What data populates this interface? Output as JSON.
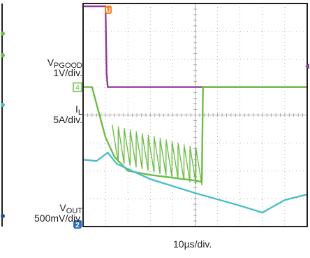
{
  "chart_data": {
    "type": "line",
    "title": "",
    "grid": true,
    "channel_labels": {
      "vpgood": {
        "symbol": "V",
        "subscript": "PGOOD",
        "scale": "1V/div."
      },
      "il": {
        "symbol": "I",
        "subscript": "L",
        "scale": "5A/div."
      },
      "vout": {
        "symbol": "V",
        "subscript": "OUT",
        "scale": "500mV/div."
      }
    },
    "timebase": "10µs/div.",
    "trigger_marker": "U",
    "channel_markers": {
      "il": "4",
      "vout": "2"
    },
    "colors": {
      "vpgood": "#8e3c97",
      "il": "#6cbd45",
      "vout": "#4bbfc9",
      "trigger": "#f58220",
      "grid": "#9a9a9a",
      "frame": "#231f20"
    },
    "x_unit": "div",
    "y_unit": "div",
    "xlim": [
      0,
      10
    ],
    "ylim": [
      0,
      8
    ],
    "series": [
      {
        "channel": "vpgood",
        "points": [
          [
            0,
            7.9
          ],
          [
            1.0,
            7.9
          ],
          [
            1.05,
            5.5
          ],
          [
            1.1,
            5.0
          ],
          [
            10,
            5.0
          ]
        ]
      },
      {
        "channel": "il",
        "points": [
          [
            0,
            5.0
          ],
          [
            0.4,
            5.0
          ],
          [
            1.0,
            3.2
          ],
          [
            1.4,
            2.5
          ],
          [
            2.0,
            2.0
          ],
          [
            3.0,
            1.85
          ],
          [
            4.0,
            1.75
          ],
          [
            5.0,
            1.65
          ],
          [
            5.3,
            1.6
          ],
          [
            5.35,
            5.0
          ],
          [
            10,
            5.0
          ]
        ]
      },
      {
        "channel": "vout",
        "points": [
          [
            0,
            2.4
          ],
          [
            0.6,
            2.35
          ],
          [
            1.1,
            2.65
          ],
          [
            1.5,
            2.25
          ],
          [
            3.0,
            1.7
          ],
          [
            5.0,
            1.2
          ],
          [
            7.0,
            0.75
          ],
          [
            8.0,
            0.5
          ],
          [
            9.0,
            0.95
          ],
          [
            10,
            1.15
          ]
        ]
      }
    ]
  }
}
